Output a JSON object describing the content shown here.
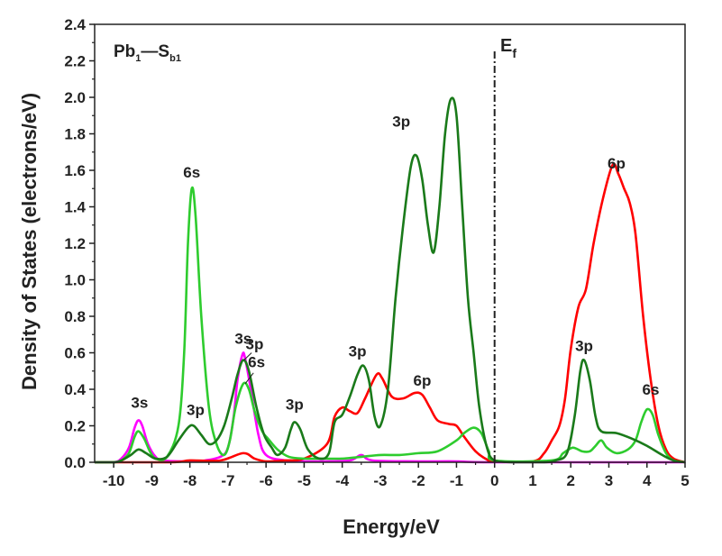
{
  "chart_data": {
    "type": "line",
    "xlabel": "Energy/eV",
    "ylabel": "Density of States (electrons/eV)",
    "xlim": [
      -10.5,
      5
    ],
    "ylim": [
      0,
      2.4
    ],
    "x_ticks": [
      "-10",
      "-9",
      "-8",
      "-7",
      "-6",
      "-5",
      "-4",
      "-3",
      "-2",
      "-1",
      "0",
      "1",
      "2",
      "3",
      "4",
      "5"
    ],
    "y_ticks": [
      "0.0",
      "0.2",
      "0.4",
      "0.6",
      "0.8",
      "1.0",
      "1.2",
      "1.4",
      "1.6",
      "1.8",
      "2.0",
      "2.2",
      "2.4"
    ],
    "panel_label": {
      "main": "Pb",
      "sub1": "1",
      "dash": "—",
      "main2": "S",
      "sub2": "b1"
    },
    "fermi_level": {
      "x": 0,
      "label_main": "E",
      "label_sub": "f"
    },
    "series": [
      {
        "color": "#ff00ff",
        "points": [
          [
            -10.5,
            0
          ],
          [
            -10,
            0
          ],
          [
            -9.8,
            0.02
          ],
          [
            -9.6,
            0.08
          ],
          [
            -9.45,
            0.19
          ],
          [
            -9.35,
            0.23
          ],
          [
            -9.25,
            0.2
          ],
          [
            -9.1,
            0.1
          ],
          [
            -8.9,
            0.03
          ],
          [
            -8.7,
            0.01
          ],
          [
            -8,
            0.005
          ],
          [
            -7.6,
            0.01
          ],
          [
            -7.2,
            0.03
          ],
          [
            -7,
            0.08
          ],
          [
            -6.85,
            0.25
          ],
          [
            -6.75,
            0.45
          ],
          [
            -6.62,
            0.59
          ],
          [
            -6.55,
            0.57
          ],
          [
            -6.4,
            0.4
          ],
          [
            -6.2,
            0.15
          ],
          [
            -6,
            0.04
          ],
          [
            -5.5,
            0.01
          ],
          [
            -5,
            0.005
          ],
          [
            -4.5,
            0.005
          ],
          [
            -3.8,
            0.01
          ],
          [
            -3.5,
            0.04
          ],
          [
            -3.2,
            0.01
          ],
          [
            -2,
            0.005
          ],
          [
            -1,
            0.005
          ],
          [
            0,
            0
          ],
          [
            5,
            0
          ]
        ]
      },
      {
        "color": "#ff0000",
        "points": [
          [
            -10.5,
            0
          ],
          [
            -8.5,
            0
          ],
          [
            -8,
            0.01
          ],
          [
            -7.2,
            0.01
          ],
          [
            -6.6,
            0.05
          ],
          [
            -6.3,
            0.02
          ],
          [
            -6,
            0.005
          ],
          [
            -5.5,
            0.01
          ],
          [
            -5,
            0.02
          ],
          [
            -4.4,
            0.1
          ],
          [
            -4.2,
            0.25
          ],
          [
            -4,
            0.3
          ],
          [
            -3.8,
            0.28
          ],
          [
            -3.6,
            0.27
          ],
          [
            -3.4,
            0.35
          ],
          [
            -3.1,
            0.48
          ],
          [
            -2.95,
            0.46
          ],
          [
            -2.7,
            0.36
          ],
          [
            -2.4,
            0.35
          ],
          [
            -2.1,
            0.38
          ],
          [
            -1.9,
            0.37
          ],
          [
            -1.7,
            0.3
          ],
          [
            -1.5,
            0.23
          ],
          [
            -1.2,
            0.21
          ],
          [
            -1,
            0.2
          ],
          [
            -0.8,
            0.14
          ],
          [
            -0.5,
            0.06
          ],
          [
            -0.2,
            0.015
          ],
          [
            0,
            0.005
          ],
          [
            1,
            0.005
          ],
          [
            1.3,
            0.05
          ],
          [
            1.5,
            0.12
          ],
          [
            1.7,
            0.2
          ],
          [
            1.85,
            0.35
          ],
          [
            2,
            0.62
          ],
          [
            2.2,
            0.85
          ],
          [
            2.4,
            0.95
          ],
          [
            2.6,
            1.2
          ],
          [
            2.85,
            1.45
          ],
          [
            3.1,
            1.63
          ],
          [
            3.25,
            1.58
          ],
          [
            3.4,
            1.5
          ],
          [
            3.55,
            1.42
          ],
          [
            3.7,
            1.25
          ],
          [
            3.9,
            0.8
          ],
          [
            4.1,
            0.45
          ],
          [
            4.3,
            0.2
          ],
          [
            4.5,
            0.07
          ],
          [
            4.7,
            0.02
          ],
          [
            5,
            0
          ]
        ]
      },
      {
        "color": "#2ecc2e",
        "points": [
          [
            -10.5,
            0
          ],
          [
            -10,
            0
          ],
          [
            -9.8,
            0.01
          ],
          [
            -9.6,
            0.05
          ],
          [
            -9.45,
            0.14
          ],
          [
            -9.35,
            0.17
          ],
          [
            -9.2,
            0.13
          ],
          [
            -9.05,
            0.06
          ],
          [
            -8.9,
            0.02
          ],
          [
            -8.6,
            0.03
          ],
          [
            -8.3,
            0.2
          ],
          [
            -8.15,
            0.6
          ],
          [
            -8.05,
            1.2
          ],
          [
            -7.95,
            1.5
          ],
          [
            -7.85,
            1.35
          ],
          [
            -7.7,
            0.8
          ],
          [
            -7.5,
            0.3
          ],
          [
            -7.3,
            0.1
          ],
          [
            -7.1,
            0.04
          ],
          [
            -6.95,
            0.12
          ],
          [
            -6.8,
            0.3
          ],
          [
            -6.6,
            0.43
          ],
          [
            -6.45,
            0.4
          ],
          [
            -6.3,
            0.28
          ],
          [
            -6.1,
            0.17
          ],
          [
            -5.95,
            0.13
          ],
          [
            -5.7,
            0.07
          ],
          [
            -5.4,
            0.03
          ],
          [
            -5,
            0.02
          ],
          [
            -4.5,
            0.02
          ],
          [
            -4,
            0.02
          ],
          [
            -3.5,
            0.03
          ],
          [
            -3,
            0.04
          ],
          [
            -2.5,
            0.04
          ],
          [
            -2,
            0.05
          ],
          [
            -1.5,
            0.06
          ],
          [
            -1,
            0.12
          ],
          [
            -0.8,
            0.16
          ],
          [
            -0.55,
            0.19
          ],
          [
            -0.35,
            0.16
          ],
          [
            -0.15,
            0.06
          ],
          [
            0,
            0.01
          ],
          [
            1.5,
            0.01
          ],
          [
            1.8,
            0.05
          ],
          [
            2.05,
            0.08
          ],
          [
            2.3,
            0.06
          ],
          [
            2.5,
            0.06
          ],
          [
            2.65,
            0.09
          ],
          [
            2.8,
            0.12
          ],
          [
            2.95,
            0.08
          ],
          [
            3.2,
            0.05
          ],
          [
            3.5,
            0.07
          ],
          [
            3.7,
            0.12
          ],
          [
            3.85,
            0.22
          ],
          [
            4,
            0.29
          ],
          [
            4.15,
            0.26
          ],
          [
            4.3,
            0.15
          ],
          [
            4.5,
            0.05
          ],
          [
            4.7,
            0.01
          ],
          [
            5,
            0
          ]
        ]
      },
      {
        "color": "#1a7a1a",
        "points": [
          [
            -10.5,
            0
          ],
          [
            -10,
            0
          ],
          [
            -9.8,
            0.01
          ],
          [
            -9.55,
            0.04
          ],
          [
            -9.35,
            0.07
          ],
          [
            -9.15,
            0.05
          ],
          [
            -8.9,
            0.02
          ],
          [
            -8.6,
            0.03
          ],
          [
            -8.3,
            0.12
          ],
          [
            -8.05,
            0.19
          ],
          [
            -7.9,
            0.2
          ],
          [
            -7.7,
            0.15
          ],
          [
            -7.5,
            0.1
          ],
          [
            -7.3,
            0.12
          ],
          [
            -7.1,
            0.2
          ],
          [
            -6.9,
            0.35
          ],
          [
            -6.75,
            0.48
          ],
          [
            -6.6,
            0.56
          ],
          [
            -6.45,
            0.5
          ],
          [
            -6.25,
            0.3
          ],
          [
            -6.05,
            0.15
          ],
          [
            -5.85,
            0.08
          ],
          [
            -5.7,
            0.04
          ],
          [
            -5.5,
            0.08
          ],
          [
            -5.35,
            0.18
          ],
          [
            -5.25,
            0.22
          ],
          [
            -5.1,
            0.18
          ],
          [
            -4.9,
            0.07
          ],
          [
            -4.6,
            0.02
          ],
          [
            -4.35,
            0.05
          ],
          [
            -4.2,
            0.22
          ],
          [
            -4,
            0.26
          ],
          [
            -3.8,
            0.36
          ],
          [
            -3.6,
            0.48
          ],
          [
            -3.45,
            0.53
          ],
          [
            -3.3,
            0.45
          ],
          [
            -3.15,
            0.25
          ],
          [
            -3,
            0.2
          ],
          [
            -2.8,
            0.4
          ],
          [
            -2.6,
            0.9
          ],
          [
            -2.4,
            1.3
          ],
          [
            -2.2,
            1.62
          ],
          [
            -2.05,
            1.68
          ],
          [
            -1.9,
            1.55
          ],
          [
            -1.75,
            1.3
          ],
          [
            -1.6,
            1.15
          ],
          [
            -1.45,
            1.4
          ],
          [
            -1.3,
            1.8
          ],
          [
            -1.15,
            1.99
          ],
          [
            -1,
            1.9
          ],
          [
            -0.85,
            1.4
          ],
          [
            -0.7,
            0.9
          ],
          [
            -0.55,
            0.6
          ],
          [
            -0.4,
            0.3
          ],
          [
            -0.2,
            0.08
          ],
          [
            0,
            0.01
          ],
          [
            0.5,
            0
          ],
          [
            1.3,
            0
          ],
          [
            1.6,
            0.01
          ],
          [
            1.9,
            0.05
          ],
          [
            2.1,
            0.25
          ],
          [
            2.25,
            0.5
          ],
          [
            2.35,
            0.56
          ],
          [
            2.5,
            0.45
          ],
          [
            2.65,
            0.25
          ],
          [
            2.8,
            0.17
          ],
          [
            3.2,
            0.16
          ],
          [
            3.6,
            0.13
          ],
          [
            4,
            0.09
          ],
          [
            4.4,
            0.04
          ],
          [
            4.7,
            0.01
          ],
          [
            5,
            0
          ]
        ]
      }
    ],
    "annotations": [
      {
        "text": "3s",
        "x": -9.32,
        "y": 0.3
      },
      {
        "text": "6s",
        "x": -7.95,
        "y": 1.56
      },
      {
        "text": "3p",
        "x": -7.85,
        "y": 0.26
      },
      {
        "text": "3s",
        "x": -6.6,
        "y": 0.65
      },
      {
        "text": "3p",
        "x": -6.3,
        "y": 0.62
      },
      {
        "text": "6s",
        "x": -6.25,
        "y": 0.52
      },
      {
        "text": "3p",
        "x": -5.25,
        "y": 0.29
      },
      {
        "text": "3p",
        "x": -3.6,
        "y": 0.58
      },
      {
        "text": "6p",
        "x": -1.9,
        "y": 0.42
      },
      {
        "text": "3p",
        "x": -2.45,
        "y": 1.84
      },
      {
        "text": "3p",
        "x": 2.35,
        "y": 0.61
      },
      {
        "text": "6p",
        "x": 3.2,
        "y": 1.61
      },
      {
        "text": "6s",
        "x": 4.1,
        "y": 0.37
      }
    ]
  }
}
